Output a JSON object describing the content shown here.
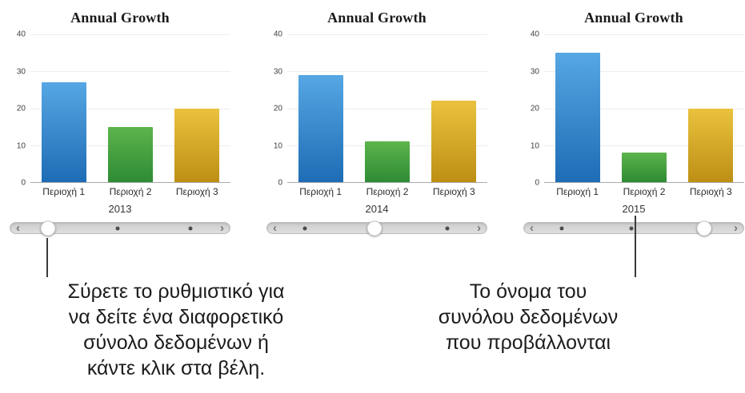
{
  "chart_data": [
    {
      "type": "bar",
      "title": "Annual Growth",
      "categories": [
        "Περιοχή 1",
        "Περιοχή 2",
        "Περιοχή 3"
      ],
      "values": [
        27,
        15,
        20
      ],
      "xlabel": "2013",
      "ylabel": "",
      "ylim": [
        0,
        40
      ],
      "y_ticks": [
        0,
        10,
        20,
        30,
        40
      ],
      "grid": true,
      "legend": false
    },
    {
      "type": "bar",
      "title": "Annual Growth",
      "categories": [
        "Περιοχή 1",
        "Περιοχή 2",
        "Περιοχή 3"
      ],
      "values": [
        29,
        11,
        22
      ],
      "xlabel": "2014",
      "ylabel": "",
      "ylim": [
        0,
        40
      ],
      "y_ticks": [
        0,
        10,
        20,
        30,
        40
      ],
      "grid": true,
      "legend": false
    },
    {
      "type": "bar",
      "title": "Annual Growth",
      "categories": [
        "Περιοχή 1",
        "Περιοχή 2",
        "Περιοχή 3"
      ],
      "values": [
        35,
        8,
        20
      ],
      "xlabel": "2015",
      "ylabel": "",
      "ylim": [
        0,
        40
      ],
      "y_ticks": [
        0,
        10,
        20,
        30,
        40
      ],
      "grid": true,
      "legend": false
    }
  ],
  "sliders": [
    {
      "thumb": 17,
      "dots": [
        49,
        82
      ]
    },
    {
      "thumb": 49,
      "dots": [
        17,
        82
      ]
    },
    {
      "thumb": 82,
      "dots": [
        17,
        49
      ]
    }
  ],
  "slider_glyphs": {
    "left": "‹",
    "right": "›"
  },
  "callouts": {
    "left": {
      "lines": [
        "Σύρετε το ρυθμιστικό για",
        "να δείτε ένα διαφορετικό",
        "σύνολο δεδομένων ή",
        "κάντε κλικ στα βέλη."
      ]
    },
    "right": {
      "lines": [
        "Το όνομα του",
        "συνόλου δεδομένων",
        "που προβάλλονται"
      ]
    }
  },
  "colors": {
    "bar_gradients": [
      [
        "#56a7e4",
        "#1e6cb5"
      ],
      [
        "#5cb44c",
        "#2e8b34"
      ],
      [
        "#eac23e",
        "#bd8f14"
      ]
    ],
    "callout_line": "#3a3a3a",
    "callout_text": "#1c1c1e"
  }
}
